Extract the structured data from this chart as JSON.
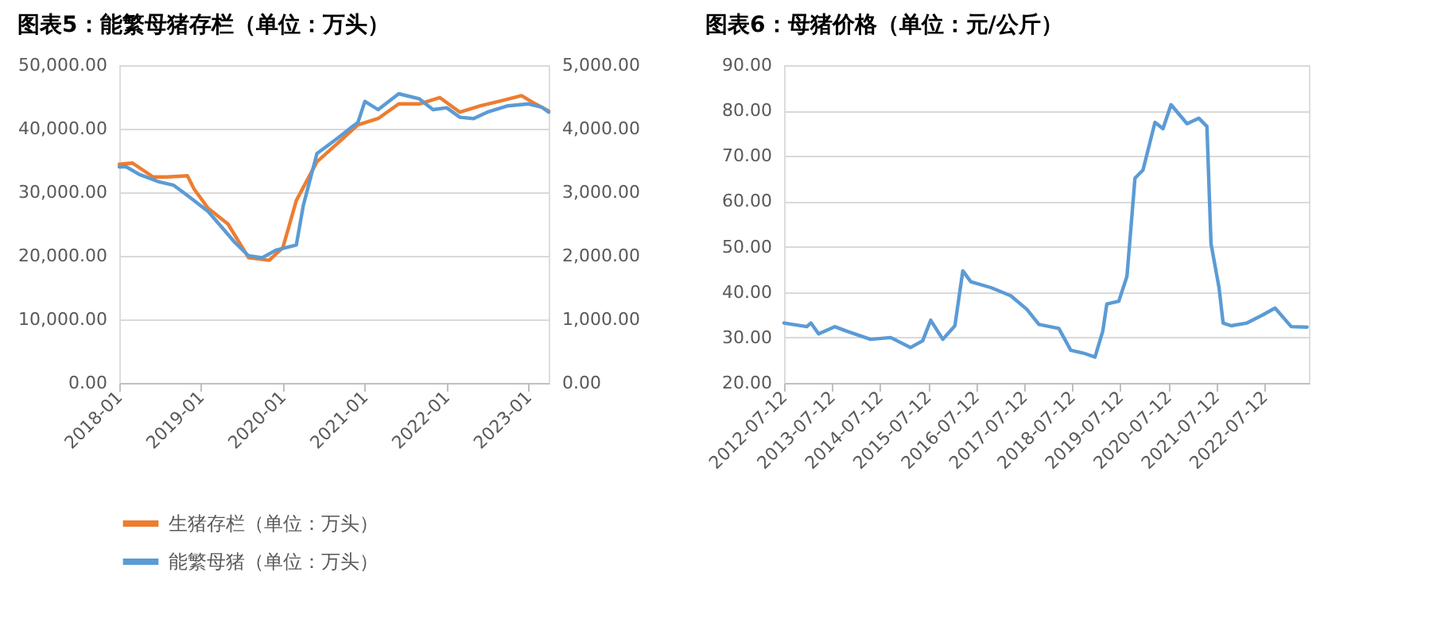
{
  "chart_data": [
    {
      "type": "line",
      "title": "图表5：能繁母猪存栏（单位：万头）",
      "series": [
        {
          "name": "生猪存栏（单位：万头）",
          "color": "#ed7d31",
          "axis": "y",
          "x": [
            "2018-01",
            "2018-03",
            "2018-06",
            "2018-08",
            "2018-11",
            "2018-12",
            "2019-02",
            "2019-05",
            "2019-08",
            "2019-11",
            "2020-01",
            "2020-03",
            "2020-06",
            "2020-09",
            "2020-12",
            "2021-03",
            "2021-06",
            "2021-09",
            "2021-12",
            "2022-03",
            "2022-06",
            "2022-09",
            "2022-12",
            "2023-02",
            "2023-04"
          ],
          "values": [
            34400,
            34600,
            32400,
            32400,
            32600,
            30500,
            27500,
            25000,
            19700,
            19300,
            21300,
            28700,
            34800,
            37700,
            40600,
            41600,
            43900,
            43900,
            44900,
            42600,
            43600,
            44400,
            45200,
            43900,
            42800
          ]
        },
        {
          "name": "能繁母猪（单位：万头）",
          "color": "#5b9bd5",
          "axis": "y2",
          "x": [
            "2018-01",
            "2018-02",
            "2018-04",
            "2018-07",
            "2018-09",
            "2018-11",
            "2019-02",
            "2019-04",
            "2019-06",
            "2019-08",
            "2019-10",
            "2019-12",
            "2020-03",
            "2020-04",
            "2020-06",
            "2020-09",
            "2020-11",
            "2020-12",
            "2021-01",
            "2021-03",
            "2021-06",
            "2021-09",
            "2021-11",
            "2022-01",
            "2022-03",
            "2022-05",
            "2022-07",
            "2022-10",
            "2023-01",
            "2023-03",
            "2023-04"
          ],
          "values": [
            3400,
            3400,
            3280,
            3160,
            3110,
            2950,
            2700,
            2460,
            2210,
            2000,
            1970,
            2090,
            2170,
            2790,
            3610,
            3850,
            4020,
            4100,
            4430,
            4300,
            4550,
            4470,
            4300,
            4330,
            4180,
            4160,
            4260,
            4360,
            4390,
            4340,
            4260
          ]
        }
      ],
      "xlim": [
        "2018-01",
        "2023-04"
      ],
      "xticks": [
        "2018-01",
        "2019-01",
        "2020-01",
        "2021-01",
        "2022-01",
        "2023-01"
      ],
      "ylim": [
        0,
        50000
      ],
      "yticks": [
        {
          "value": 0,
          "label": "0.00"
        },
        {
          "value": 10000,
          "label": "10,000.00"
        },
        {
          "value": 20000,
          "label": "20,000.00"
        },
        {
          "value": 30000,
          "label": "30,000.00"
        },
        {
          "value": 40000,
          "label": "40,000.00"
        },
        {
          "value": 50000,
          "label": "50,000.00"
        }
      ],
      "y2lim": [
        0,
        5000
      ],
      "y2ticks": [
        {
          "value": 0,
          "label": "0.00"
        },
        {
          "value": 1000,
          "label": "1,000.00"
        },
        {
          "value": 2000,
          "label": "2,000.00"
        },
        {
          "value": 3000,
          "label": "3,000.00"
        },
        {
          "value": 4000,
          "label": "4,000.00"
        },
        {
          "value": 5000,
          "label": "5,000.00"
        }
      ],
      "grid": "y",
      "legend": "bottom"
    },
    {
      "type": "line",
      "title": "图表6：母猪价格（单位：元/公斤）",
      "series": [
        {
          "color": "#5b9bd5",
          "x": [
            "2012-07-12",
            "2013-01",
            "2013-02",
            "2013-04",
            "2013-08",
            "2013-11",
            "2014-05",
            "2014-10",
            "2015-03",
            "2015-06",
            "2015-08",
            "2015-11",
            "2016-02",
            "2016-04",
            "2016-06",
            "2016-11",
            "2017-04",
            "2017-08",
            "2017-11",
            "2018-04",
            "2018-07",
            "2018-10",
            "2019-01",
            "2019-03",
            "2019-04",
            "2019-07",
            "2019-09",
            "2019-11",
            "2020-01",
            "2020-04",
            "2020-06",
            "2020-08",
            "2020-12",
            "2021-03",
            "2021-05",
            "2021-06",
            "2021-08",
            "2021-09",
            "2021-11",
            "2022-03",
            "2022-07",
            "2022-10",
            "2023-02",
            "2023-06"
          ],
          "values": [
            33.2,
            32.4,
            33.2,
            30.8,
            32.4,
            31.4,
            29.6,
            30.0,
            27.8,
            29.3,
            33.8,
            29.6,
            32.6,
            44.7,
            42.3,
            41.0,
            39.2,
            36.2,
            32.9,
            32.0,
            27.2,
            26.6,
            25.7,
            31.4,
            37.4,
            38.0,
            43.5,
            65.1,
            66.9,
            77.4,
            76.0,
            81.3,
            77.1,
            78.3,
            76.5,
            50.7,
            41.0,
            33.2,
            32.6,
            33.2,
            35.0,
            36.5,
            32.4,
            32.3
          ]
        }
      ],
      "xlim": [
        "2012-07-12",
        "2023-06-15"
      ],
      "xticks": [
        "2012-07-12",
        "2013-07-12",
        "2014-07-12",
        "2015-07-12",
        "2016-07-12",
        "2017-07-12",
        "2018-07-12",
        "2019-07-12",
        "2020-07-12",
        "2021-07-12",
        "2022-07-12"
      ],
      "ylim": [
        20,
        90
      ],
      "yticks": [
        {
          "value": 20,
          "label": "20.00"
        },
        {
          "value": 30,
          "label": "30.00"
        },
        {
          "value": 40,
          "label": "40.00"
        },
        {
          "value": 50,
          "label": "50.00"
        },
        {
          "value": 60,
          "label": "60.00"
        },
        {
          "value": 70,
          "label": "70.00"
        },
        {
          "value": 80,
          "label": "80.00"
        },
        {
          "value": 90,
          "label": "90.00"
        }
      ],
      "grid": "y"
    }
  ]
}
